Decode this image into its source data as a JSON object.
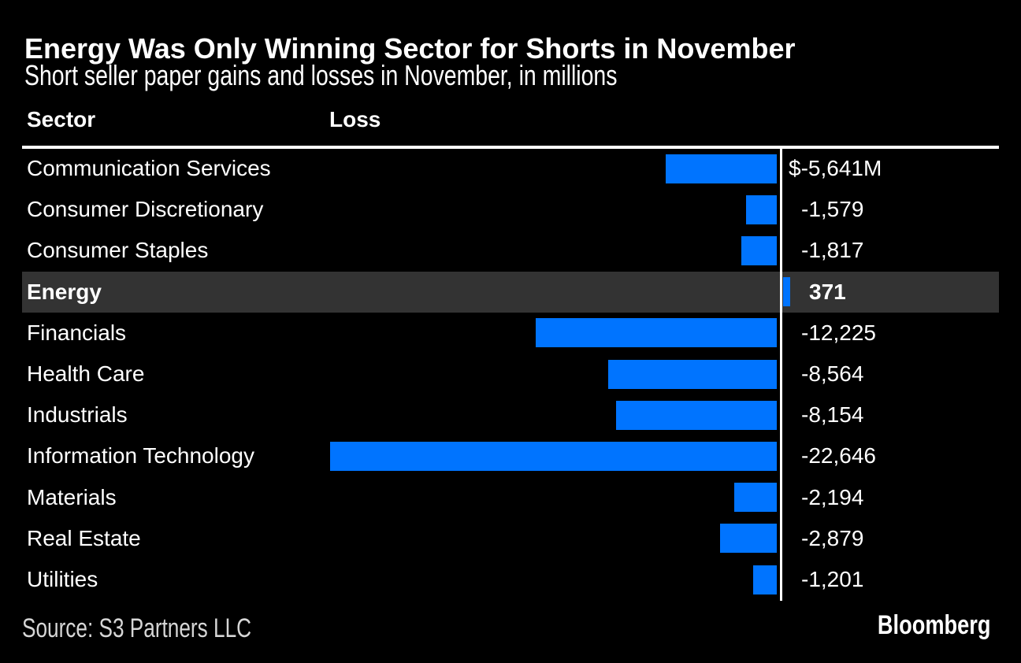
{
  "branding": {
    "logo_text": "Bloomberg"
  },
  "header": {
    "title": "Energy Was Only Winning Sector for Shorts in November",
    "subtitle": "Short seller paper gains and losses in November, in millions"
  },
  "columns": {
    "sector": "Sector",
    "loss": "Loss"
  },
  "source_note": "Source: S3 Partners LLC",
  "colors": {
    "background": "#000000",
    "bar_blue": "#0074ff",
    "highlight_row": "#333333",
    "axis_line": "#ffffff",
    "text_primary": "#ffffff",
    "text_source": "#d6d6d6"
  },
  "chart_data": {
    "type": "bar",
    "orientation": "horizontal",
    "title": "Energy Was Only Winning Sector for Shorts in November",
    "subtitle": "Short seller paper gains and losses in November, in millions",
    "unit": "USD millions",
    "categories": [
      "Communication Services",
      "Consumer Discretionary",
      "Consumer Staples",
      "Energy",
      "Financials",
      "Health Care",
      "Industrials",
      "Information Technology",
      "Materials",
      "Real Estate",
      "Utilities"
    ],
    "values": [
      -5641,
      -1579,
      -1817,
      371,
      -12225,
      -8564,
      -8154,
      -22646,
      -2194,
      -2879,
      -1201
    ],
    "value_labels": [
      "$-5,641M",
      "-1,579",
      "-1,817",
      "371",
      "-12,225",
      "-8,564",
      "-8,154",
      "-22,646",
      "-2,194",
      "-2,879",
      "-1,201"
    ],
    "highlighted_category": "Energy",
    "xlim": [
      -22646,
      371
    ],
    "source": "S3 Partners LLC",
    "legend": "none",
    "grid": "off"
  }
}
